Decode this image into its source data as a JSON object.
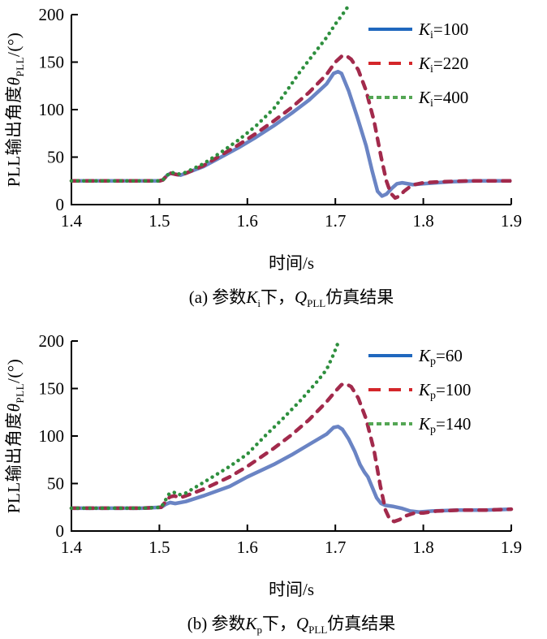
{
  "chart_data": [
    {
      "type": "line",
      "panel": "a",
      "xlabel": "时间/s",
      "ylabel": {
        "pre": "PLL输出角度",
        "sym": "θ",
        "sym_sub": "PLL",
        "post": "/(°)"
      },
      "caption": {
        "pre": "(a) 参数",
        "sym1": "K",
        "sym1_sub": "i",
        "mid": "下，",
        "sym2": "Q",
        "sym2_sub": "PLL",
        "post": "仿真结果"
      },
      "xlim": [
        1.4,
        1.9
      ],
      "ylim": [
        0,
        200
      ],
      "x_ticks": [
        "1.4",
        "1.5",
        "1.6",
        "1.7",
        "1.8",
        "1.9"
      ],
      "y_ticks": [
        "0",
        "50",
        "100",
        "150",
        "200"
      ],
      "grid": false,
      "legend_position": "inside-upper-right",
      "series": [
        {
          "name": "Ki-100",
          "label": {
            "sym": "K",
            "sub": "i",
            "val": "=100"
          },
          "dash": "solid",
          "line_color": "#6a84c4",
          "legend_color": "#2068be",
          "points": [
            [
              1.4,
              25
            ],
            [
              1.44,
              25
            ],
            [
              1.48,
              25
            ],
            [
              1.5,
              25
            ],
            [
              1.504,
              26
            ],
            [
              1.509,
              31
            ],
            [
              1.513,
              33
            ],
            [
              1.518,
              32
            ],
            [
              1.524,
              31
            ],
            [
              1.53,
              33
            ],
            [
              1.55,
              40
            ],
            [
              1.57,
              50
            ],
            [
              1.59,
              60
            ],
            [
              1.61,
              71
            ],
            [
              1.63,
              83
            ],
            [
              1.65,
              96
            ],
            [
              1.67,
              110
            ],
            [
              1.69,
              127
            ],
            [
              1.698,
              138
            ],
            [
              1.703,
              140
            ],
            [
              1.707,
              138
            ],
            [
              1.715,
              120
            ],
            [
              1.725,
              92
            ],
            [
              1.735,
              62
            ],
            [
              1.742,
              35
            ],
            [
              1.748,
              14
            ],
            [
              1.753,
              9
            ],
            [
              1.758,
              11
            ],
            [
              1.764,
              17
            ],
            [
              1.77,
              22
            ],
            [
              1.776,
              23
            ],
            [
              1.788,
              21
            ],
            [
              1.8,
              22
            ],
            [
              1.83,
              24
            ],
            [
              1.86,
              25
            ],
            [
              1.9,
              25
            ]
          ]
        },
        {
          "name": "Ki-220",
          "label": {
            "sym": "K",
            "sub": "i",
            "val": "=220"
          },
          "dash": "long-dash",
          "line_color": "#a22a4c",
          "legend_color": "#d4262a",
          "points": [
            [
              1.4,
              25
            ],
            [
              1.44,
              25
            ],
            [
              1.48,
              25
            ],
            [
              1.5,
              25
            ],
            [
              1.504,
              26
            ],
            [
              1.509,
              31
            ],
            [
              1.513,
              33
            ],
            [
              1.518,
              32
            ],
            [
              1.524,
              31
            ],
            [
              1.53,
              33
            ],
            [
              1.55,
              41
            ],
            [
              1.57,
              52
            ],
            [
              1.59,
              63
            ],
            [
              1.61,
              75
            ],
            [
              1.63,
              88
            ],
            [
              1.65,
              102
            ],
            [
              1.67,
              118
            ],
            [
              1.69,
              137
            ],
            [
              1.7,
              150
            ],
            [
              1.707,
              156
            ],
            [
              1.712,
              157
            ],
            [
              1.718,
              153
            ],
            [
              1.726,
              142
            ],
            [
              1.735,
              120
            ],
            [
              1.744,
              88
            ],
            [
              1.752,
              50
            ],
            [
              1.758,
              25
            ],
            [
              1.763,
              12
            ],
            [
              1.768,
              7
            ],
            [
              1.773,
              9
            ],
            [
              1.778,
              14
            ],
            [
              1.785,
              19
            ],
            [
              1.79,
              21
            ],
            [
              1.8,
              23
            ],
            [
              1.82,
              24
            ],
            [
              1.85,
              25
            ],
            [
              1.9,
              25
            ]
          ]
        },
        {
          "name": "Ki-400",
          "label": {
            "sym": "K",
            "sub": "i",
            "val": "=400"
          },
          "dash": "dot",
          "line_color": "#2e8f3e",
          "legend_color": "#54a654",
          "points": [
            [
              1.4,
              25
            ],
            [
              1.44,
              25
            ],
            [
              1.48,
              25
            ],
            [
              1.5,
              25
            ],
            [
              1.504,
              26
            ],
            [
              1.509,
              31
            ],
            [
              1.513,
              34
            ],
            [
              1.518,
              33
            ],
            [
              1.524,
              32
            ],
            [
              1.53,
              34
            ],
            [
              1.55,
              43
            ],
            [
              1.57,
              55
            ],
            [
              1.59,
              68
            ],
            [
              1.61,
              83
            ],
            [
              1.63,
              101
            ],
            [
              1.645,
              120
            ],
            [
              1.66,
              140
            ],
            [
              1.675,
              158
            ],
            [
              1.69,
              176
            ],
            [
              1.7,
              190
            ],
            [
              1.708,
              200
            ],
            [
              1.714,
              208
            ]
          ]
        }
      ]
    },
    {
      "type": "line",
      "panel": "b",
      "xlabel": "时间/s",
      "ylabel": {
        "pre": "PLL输出角度",
        "sym": "θ",
        "sym_sub": "PLL",
        "post": "/(°)"
      },
      "caption": {
        "pre": "(b) 参数",
        "sym1": "K",
        "sym1_sub": "p",
        "mid": "下，",
        "sym2": "Q",
        "sym2_sub": "PLL",
        "post": "仿真结果"
      },
      "xlim": [
        1.4,
        1.9
      ],
      "ylim": [
        0,
        200
      ],
      "x_ticks": [
        "1.4",
        "1.5",
        "1.6",
        "1.7",
        "1.8",
        "1.9"
      ],
      "y_ticks": [
        "0",
        "50",
        "100",
        "150",
        "200"
      ],
      "grid": false,
      "legend_position": "inside-upper-right",
      "series": [
        {
          "name": "Kp-60",
          "label": {
            "sym": "K",
            "sub": "p",
            "val": "=60"
          },
          "dash": "solid",
          "line_color": "#6a84c4",
          "legend_color": "#2068be",
          "points": [
            [
              1.4,
              24
            ],
            [
              1.44,
              24
            ],
            [
              1.48,
              24
            ],
            [
              1.502,
              25
            ],
            [
              1.507,
              28
            ],
            [
              1.512,
              30
            ],
            [
              1.518,
              29
            ],
            [
              1.53,
              31
            ],
            [
              1.55,
              37
            ],
            [
              1.58,
              47
            ],
            [
              1.6,
              57
            ],
            [
              1.63,
              70
            ],
            [
              1.65,
              80
            ],
            [
              1.67,
              91
            ],
            [
              1.69,
              102
            ],
            [
              1.698,
              109
            ],
            [
              1.703,
              110
            ],
            [
              1.708,
              107
            ],
            [
              1.715,
              97
            ],
            [
              1.722,
              84
            ],
            [
              1.728,
              70
            ],
            [
              1.733,
              62
            ],
            [
              1.737,
              57
            ],
            [
              1.742,
              46
            ],
            [
              1.747,
              35
            ],
            [
              1.752,
              29
            ],
            [
              1.757,
              27
            ],
            [
              1.765,
              26
            ],
            [
              1.775,
              24
            ],
            [
              1.785,
              21
            ],
            [
              1.795,
              20
            ],
            [
              1.81,
              21
            ],
            [
              1.84,
              22
            ],
            [
              1.87,
              22
            ],
            [
              1.9,
              23
            ]
          ]
        },
        {
          "name": "Kp-100",
          "label": {
            "sym": "K",
            "sub": "p",
            "val": "=100"
          },
          "dash": "long-dash",
          "line_color": "#a22a4c",
          "legend_color": "#d4262a",
          "points": [
            [
              1.4,
              24
            ],
            [
              1.44,
              24
            ],
            [
              1.48,
              24
            ],
            [
              1.502,
              25
            ],
            [
              1.507,
              31
            ],
            [
              1.512,
              36
            ],
            [
              1.517,
              37
            ],
            [
              1.523,
              35
            ],
            [
              1.53,
              37
            ],
            [
              1.55,
              44
            ],
            [
              1.58,
              57
            ],
            [
              1.6,
              68
            ],
            [
              1.63,
              87
            ],
            [
              1.65,
              101
            ],
            [
              1.67,
              117
            ],
            [
              1.69,
              136
            ],
            [
              1.7,
              147
            ],
            [
              1.707,
              154
            ],
            [
              1.712,
              155
            ],
            [
              1.718,
              152
            ],
            [
              1.726,
              140
            ],
            [
              1.735,
              118
            ],
            [
              1.744,
              85
            ],
            [
              1.751,
              48
            ],
            [
              1.757,
              22
            ],
            [
              1.762,
              12
            ],
            [
              1.767,
              10
            ],
            [
              1.773,
              12
            ],
            [
              1.78,
              16
            ],
            [
              1.79,
              19
            ],
            [
              1.8,
              19
            ],
            [
              1.815,
              21
            ],
            [
              1.84,
              22
            ],
            [
              1.87,
              22
            ],
            [
              1.9,
              23
            ]
          ]
        },
        {
          "name": "Kp-140",
          "label": {
            "sym": "K",
            "sub": "p",
            "val": "=140"
          },
          "dash": "dot",
          "line_color": "#2e8f3e",
          "legend_color": "#54a654",
          "points": [
            [
              1.4,
              24
            ],
            [
              1.44,
              24
            ],
            [
              1.48,
              24
            ],
            [
              1.502,
              25
            ],
            [
              1.506,
              31
            ],
            [
              1.511,
              39
            ],
            [
              1.516,
              41
            ],
            [
              1.522,
              38
            ],
            [
              1.53,
              40
            ],
            [
              1.55,
              51
            ],
            [
              1.58,
              68
            ],
            [
              1.6,
              81
            ],
            [
              1.62,
              100
            ],
            [
              1.64,
              118
            ],
            [
              1.66,
              137
            ],
            [
              1.68,
              158
            ],
            [
              1.69,
              170
            ],
            [
              1.698,
              186
            ],
            [
              1.703,
              198
            ]
          ]
        }
      ]
    }
  ]
}
